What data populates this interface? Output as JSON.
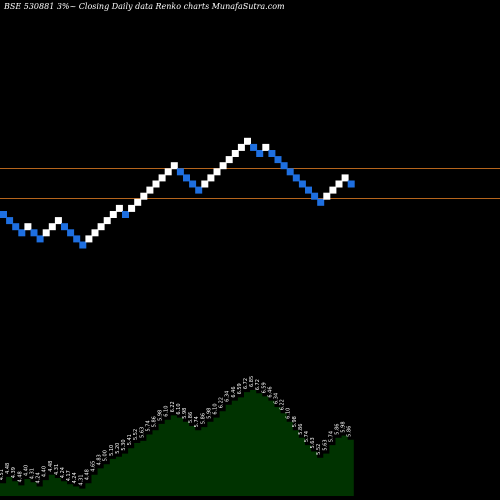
{
  "chart_data": {
    "type": "renko",
    "title": "BSE 530881 3%~  Closing Daily data  Renko  charts MunafaSutra.com",
    "colors": {
      "background": "#000000",
      "up_brick": "#ffffff",
      "down_brick": "#1e6fe0",
      "reference_line": "#b5651d",
      "volume_area": "#003300"
    },
    "reference_lines": [
      "upper",
      "lower"
    ],
    "bricks": [
      {
        "i": 0,
        "level": 5,
        "dir": "down"
      },
      {
        "i": 1,
        "level": 4,
        "dir": "down"
      },
      {
        "i": 2,
        "level": 3,
        "dir": "down"
      },
      {
        "i": 3,
        "level": 2,
        "dir": "down"
      },
      {
        "i": 4,
        "level": 3,
        "dir": "up"
      },
      {
        "i": 5,
        "level": 2,
        "dir": "down"
      },
      {
        "i": 6,
        "level": 1,
        "dir": "down"
      },
      {
        "i": 7,
        "level": 2,
        "dir": "up"
      },
      {
        "i": 8,
        "level": 3,
        "dir": "up"
      },
      {
        "i": 9,
        "level": 4,
        "dir": "up"
      },
      {
        "i": 10,
        "level": 3,
        "dir": "down"
      },
      {
        "i": 11,
        "level": 2,
        "dir": "down"
      },
      {
        "i": 12,
        "level": 1,
        "dir": "down"
      },
      {
        "i": 13,
        "level": 0,
        "dir": "down"
      },
      {
        "i": 14,
        "level": 1,
        "dir": "up"
      },
      {
        "i": 15,
        "level": 2,
        "dir": "up"
      },
      {
        "i": 16,
        "level": 3,
        "dir": "up"
      },
      {
        "i": 17,
        "level": 4,
        "dir": "up"
      },
      {
        "i": 18,
        "level": 5,
        "dir": "up"
      },
      {
        "i": 19,
        "level": 6,
        "dir": "up"
      },
      {
        "i": 20,
        "level": 5,
        "dir": "down"
      },
      {
        "i": 21,
        "level": 6,
        "dir": "up"
      },
      {
        "i": 22,
        "level": 7,
        "dir": "up"
      },
      {
        "i": 23,
        "level": 8,
        "dir": "up"
      },
      {
        "i": 24,
        "level": 9,
        "dir": "up"
      },
      {
        "i": 25,
        "level": 10,
        "dir": "up"
      },
      {
        "i": 26,
        "level": 11,
        "dir": "up"
      },
      {
        "i": 27,
        "level": 12,
        "dir": "up"
      },
      {
        "i": 28,
        "level": 13,
        "dir": "up"
      },
      {
        "i": 29,
        "level": 12,
        "dir": "down"
      },
      {
        "i": 30,
        "level": 11,
        "dir": "down"
      },
      {
        "i": 31,
        "level": 10,
        "dir": "down"
      },
      {
        "i": 32,
        "level": 9,
        "dir": "down"
      },
      {
        "i": 33,
        "level": 10,
        "dir": "up"
      },
      {
        "i": 34,
        "level": 11,
        "dir": "up"
      },
      {
        "i": 35,
        "level": 12,
        "dir": "up"
      },
      {
        "i": 36,
        "level": 13,
        "dir": "up"
      },
      {
        "i": 37,
        "level": 14,
        "dir": "up"
      },
      {
        "i": 38,
        "level": 15,
        "dir": "up"
      },
      {
        "i": 39,
        "level": 16,
        "dir": "up"
      },
      {
        "i": 40,
        "level": 17,
        "dir": "up"
      },
      {
        "i": 41,
        "level": 16,
        "dir": "down"
      },
      {
        "i": 42,
        "level": 15,
        "dir": "down"
      },
      {
        "i": 43,
        "level": 16,
        "dir": "up"
      },
      {
        "i": 44,
        "level": 15,
        "dir": "down"
      },
      {
        "i": 45,
        "level": 14,
        "dir": "down"
      },
      {
        "i": 46,
        "level": 13,
        "dir": "down"
      },
      {
        "i": 47,
        "level": 12,
        "dir": "down"
      },
      {
        "i": 48,
        "level": 11,
        "dir": "down"
      },
      {
        "i": 49,
        "level": 10,
        "dir": "down"
      },
      {
        "i": 50,
        "level": 9,
        "dir": "down"
      },
      {
        "i": 51,
        "level": 8,
        "dir": "down"
      },
      {
        "i": 52,
        "level": 7,
        "dir": "down"
      },
      {
        "i": 53,
        "level": 8,
        "dir": "up"
      },
      {
        "i": 54,
        "level": 9,
        "dir": "up"
      },
      {
        "i": 55,
        "level": 10,
        "dir": "up"
      },
      {
        "i": 56,
        "level": 11,
        "dir": "up"
      },
      {
        "i": 57,
        "level": 10,
        "dir": "down"
      }
    ],
    "volume_profile": [
      0.12,
      0.18,
      0.14,
      0.1,
      0.16,
      0.13,
      0.09,
      0.15,
      0.2,
      0.17,
      0.14,
      0.11,
      0.09,
      0.07,
      0.12,
      0.2,
      0.26,
      0.3,
      0.35,
      0.37,
      0.4,
      0.45,
      0.5,
      0.52,
      0.58,
      0.62,
      0.68,
      0.72,
      0.76,
      0.74,
      0.7,
      0.66,
      0.62,
      0.65,
      0.7,
      0.74,
      0.8,
      0.86,
      0.9,
      0.93,
      0.98,
      1.0,
      0.97,
      0.94,
      0.9,
      0.84,
      0.78,
      0.7,
      0.62,
      0.55,
      0.48,
      0.42,
      0.36,
      0.4,
      0.48,
      0.55,
      0.57,
      0.53
    ],
    "volume_labels": [
      "4.51",
      "4.48",
      "4.39",
      "4.48",
      "4.40",
      "4.31",
      "4.24",
      "4.40",
      "4.48",
      "4.31",
      "4.24",
      "4.17",
      "4.24",
      "4.31",
      "4.48",
      "4.65",
      "4.83",
      "5.00",
      "5.10",
      "5.20",
      "5.30",
      "5.41",
      "5.52",
      "5.63",
      "5.74",
      "5.86",
      "5.98",
      "6.10",
      "6.22",
      "6.10",
      "5.98",
      "5.86",
      "5.74",
      "5.86",
      "5.98",
      "6.10",
      "6.22",
      "6.34",
      "6.46",
      "6.59",
      "6.72",
      "6.85",
      "6.72",
      "6.59",
      "6.46",
      "6.34",
      "6.22",
      "6.10",
      "5.98",
      "5.86",
      "5.74",
      "5.63",
      "5.52",
      "5.63",
      "5.74",
      "5.86",
      "5.98",
      "5.86"
    ]
  }
}
